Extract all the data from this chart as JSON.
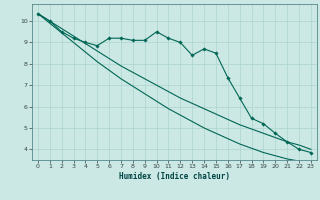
{
  "xlabel": "Humidex (Indice chaleur)",
  "background_color": "#cce8e4",
  "grid_color": "#b0d8d0",
  "line_color": "#006655",
  "x_data": [
    0,
    1,
    2,
    3,
    4,
    5,
    6,
    7,
    8,
    9,
    10,
    11,
    12,
    13,
    14,
    15,
    16,
    17,
    18,
    19,
    20,
    21,
    22,
    23
  ],
  "y_main": [
    10.35,
    10.0,
    9.5,
    9.2,
    9.0,
    8.85,
    9.2,
    9.2,
    9.1,
    9.1,
    9.5,
    9.2,
    9.0,
    8.4,
    8.7,
    8.5,
    7.35,
    6.4,
    5.45,
    5.2,
    4.75,
    4.35,
    4.0,
    3.85
  ],
  "y_upper": [
    10.35,
    10.0,
    9.65,
    9.3,
    8.95,
    8.6,
    8.25,
    7.9,
    7.6,
    7.3,
    7.0,
    6.7,
    6.4,
    6.15,
    5.9,
    5.65,
    5.4,
    5.15,
    4.95,
    4.75,
    4.55,
    4.35,
    4.2,
    4.0
  ],
  "y_lower": [
    10.35,
    9.9,
    9.45,
    9.0,
    8.55,
    8.1,
    7.7,
    7.3,
    6.95,
    6.6,
    6.25,
    5.9,
    5.6,
    5.3,
    5.0,
    4.75,
    4.5,
    4.25,
    4.05,
    3.85,
    3.7,
    3.55,
    3.45,
    3.4
  ],
  "ylim": [
    3.5,
    10.8
  ],
  "xlim": [
    -0.5,
    23.5
  ],
  "yticks": [
    4,
    5,
    6,
    7,
    8,
    9,
    10
  ],
  "xticks": [
    0,
    1,
    2,
    3,
    4,
    5,
    6,
    7,
    8,
    9,
    10,
    11,
    12,
    13,
    14,
    15,
    16,
    17,
    18,
    19,
    20,
    21,
    22,
    23
  ]
}
